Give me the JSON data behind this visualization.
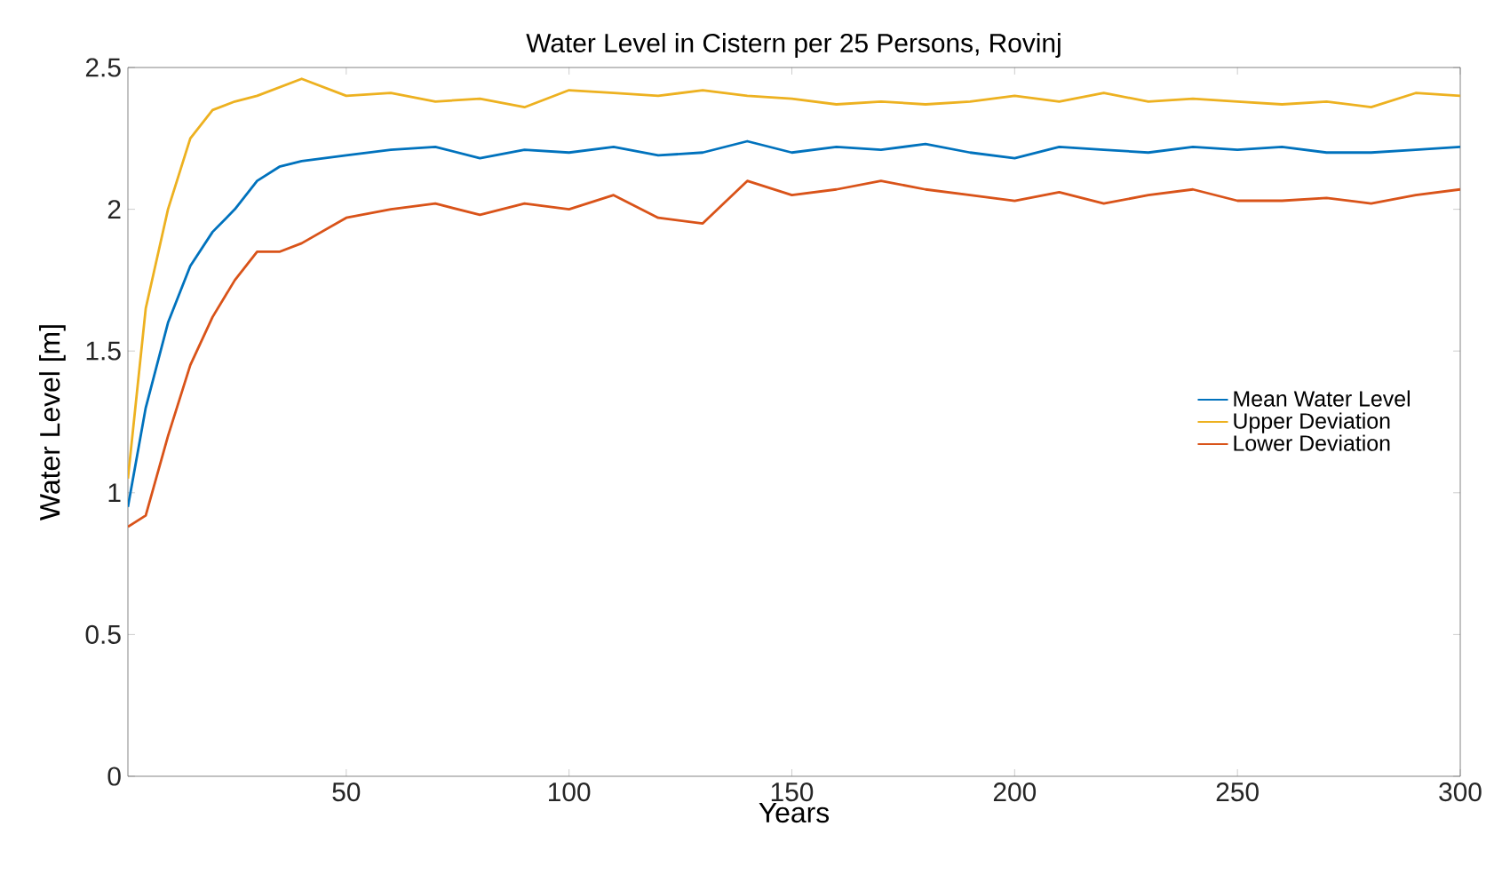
{
  "chart_data": {
    "type": "line",
    "title": "Water Level in Cistern per 25 Persons, Rovinj",
    "xlabel": "Years",
    "ylabel": "Water Level [m]",
    "xlim": [
      1,
      300
    ],
    "ylim": [
      0,
      2.5
    ],
    "xticks": [
      50,
      100,
      150,
      200,
      250,
      300
    ],
    "yticks": [
      0,
      0.5,
      1,
      1.5,
      2,
      2.5
    ],
    "grid": false,
    "legend": "right",
    "series": [
      {
        "name": "Mean Water Level",
        "color": "#0072bd",
        "x": [
          1,
          5,
          10,
          15,
          20,
          25,
          30,
          35,
          40,
          50,
          60,
          70,
          80,
          90,
          100,
          110,
          120,
          130,
          140,
          150,
          160,
          170,
          180,
          190,
          200,
          210,
          220,
          230,
          240,
          250,
          260,
          270,
          280,
          290,
          300
        ],
        "values": [
          0.95,
          1.3,
          1.6,
          1.8,
          1.92,
          2.0,
          2.1,
          2.15,
          2.17,
          2.19,
          2.21,
          2.22,
          2.18,
          2.21,
          2.2,
          2.22,
          2.19,
          2.2,
          2.24,
          2.2,
          2.22,
          2.21,
          2.23,
          2.2,
          2.18,
          2.22,
          2.21,
          2.2,
          2.22,
          2.21,
          2.22,
          2.2,
          2.2,
          2.21,
          2.22
        ]
      },
      {
        "name": "Upper Deviation",
        "color": "#edb120",
        "x": [
          1,
          5,
          10,
          15,
          20,
          25,
          30,
          40,
          50,
          60,
          70,
          80,
          90,
          100,
          110,
          120,
          130,
          140,
          150,
          160,
          170,
          180,
          190,
          200,
          210,
          220,
          230,
          240,
          250,
          260,
          270,
          280,
          290,
          300
        ],
        "values": [
          1.05,
          1.65,
          2.0,
          2.25,
          2.35,
          2.38,
          2.4,
          2.46,
          2.4,
          2.41,
          2.38,
          2.39,
          2.36,
          2.42,
          2.41,
          2.4,
          2.42,
          2.4,
          2.39,
          2.37,
          2.38,
          2.37,
          2.38,
          2.4,
          2.38,
          2.41,
          2.38,
          2.39,
          2.38,
          2.37,
          2.38,
          2.36,
          2.41,
          2.4
        ]
      },
      {
        "name": "Lower Deviation",
        "color": "#d95319",
        "x": [
          1,
          5,
          10,
          15,
          20,
          25,
          30,
          35,
          40,
          50,
          60,
          70,
          80,
          90,
          100,
          110,
          120,
          130,
          140,
          150,
          160,
          170,
          180,
          190,
          200,
          210,
          220,
          230,
          240,
          250,
          260,
          270,
          280,
          290,
          300
        ],
        "values": [
          0.88,
          0.92,
          1.2,
          1.45,
          1.62,
          1.75,
          1.85,
          1.85,
          1.88,
          1.97,
          2.0,
          2.02,
          1.98,
          2.02,
          2.0,
          2.05,
          1.97,
          1.95,
          2.1,
          2.05,
          2.07,
          2.1,
          2.07,
          2.05,
          2.03,
          2.06,
          2.02,
          2.05,
          2.07,
          2.03,
          2.03,
          2.04,
          2.02,
          2.05,
          2.07
        ]
      }
    ]
  }
}
